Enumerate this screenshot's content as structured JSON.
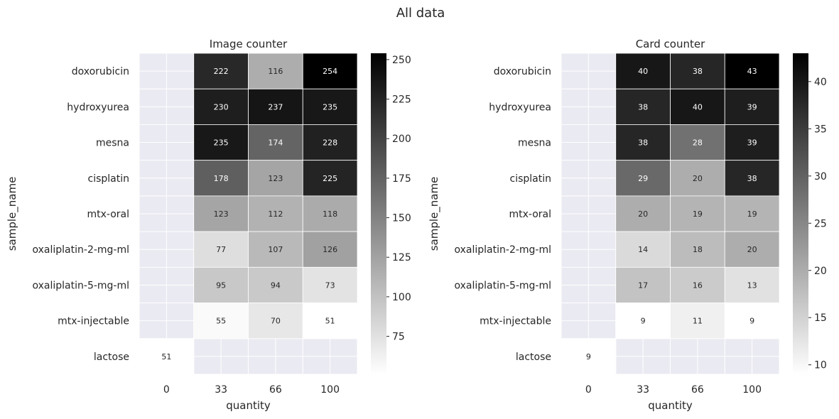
{
  "figure": {
    "suptitle": "All data"
  },
  "colors": {
    "background": "#ffffff",
    "missing_cell": "#eaeaf2",
    "grid_line": "#ffffff",
    "text_dark": "#262626",
    "cmap": [
      "#ffffff",
      "#000000"
    ]
  },
  "chart_data": [
    {
      "type": "heatmap",
      "title": "Image counter",
      "xlabel": "quantity",
      "ylabel": "sample_name",
      "x_categories": [
        "0",
        "33",
        "66",
        "100"
      ],
      "y_categories": [
        "doxorubicin",
        "hydroxyurea",
        "mesna",
        "cisplatin",
        "mtx-oral",
        "oxaliplatin-2-mg-ml",
        "oxaliplatin-5-mg-ml",
        "mtx-injectable",
        "lactose"
      ],
      "values": [
        [
          null,
          222,
          116,
          254
        ],
        [
          null,
          230,
          237,
          235
        ],
        [
          null,
          235,
          174,
          228
        ],
        [
          null,
          178,
          123,
          225
        ],
        [
          null,
          123,
          112,
          118
        ],
        [
          null,
          77,
          107,
          126
        ],
        [
          null,
          95,
          94,
          73
        ],
        [
          null,
          55,
          70,
          51
        ],
        [
          51,
          null,
          null,
          null
        ]
      ],
      "vmin": 51,
      "vmax": 254,
      "colorbar_ticks": [
        75,
        100,
        125,
        150,
        175,
        200,
        225,
        250
      ]
    },
    {
      "type": "heatmap",
      "title": "Card counter",
      "xlabel": "quantity",
      "ylabel": "sample_name",
      "x_categories": [
        "0",
        "33",
        "66",
        "100"
      ],
      "y_categories": [
        "doxorubicin",
        "hydroxyurea",
        "mesna",
        "cisplatin",
        "mtx-oral",
        "oxaliplatin-2-mg-ml",
        "oxaliplatin-5-mg-ml",
        "mtx-injectable",
        "lactose"
      ],
      "values": [
        [
          null,
          40,
          38,
          43
        ],
        [
          null,
          38,
          40,
          39
        ],
        [
          null,
          38,
          28,
          39
        ],
        [
          null,
          29,
          20,
          38
        ],
        [
          null,
          20,
          19,
          19
        ],
        [
          null,
          14,
          18,
          20
        ],
        [
          null,
          17,
          16,
          13
        ],
        [
          null,
          9,
          11,
          9
        ],
        [
          9,
          null,
          null,
          null
        ]
      ],
      "vmin": 9,
      "vmax": 43,
      "colorbar_ticks": [
        10,
        15,
        20,
        25,
        30,
        35,
        40
      ]
    }
  ]
}
